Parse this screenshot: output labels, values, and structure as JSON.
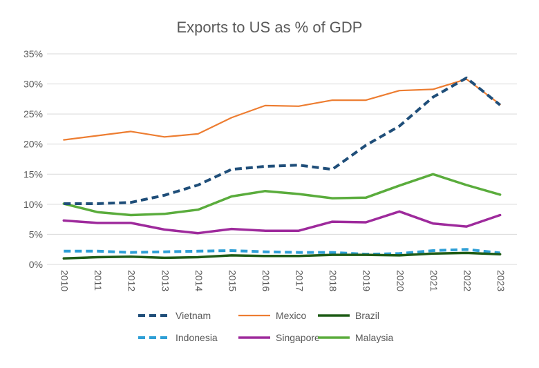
{
  "chart_data": {
    "type": "line",
    "title": "Exports to US as % of GDP",
    "xlabel": "",
    "ylabel": "",
    "x": [
      "2010",
      "2011",
      "2012",
      "2013",
      "2014",
      "2015",
      "2016",
      "2017",
      "2018",
      "2019",
      "2020",
      "2021",
      "2022",
      "2023"
    ],
    "ylim": [
      0,
      35
    ],
    "yticks": [
      0,
      5,
      10,
      15,
      20,
      25,
      30,
      35
    ],
    "ytick_labels": [
      "0%",
      "5%",
      "10%",
      "15%",
      "20%",
      "25%",
      "30%",
      "35%"
    ],
    "grid": true,
    "legend_position": "bottom",
    "series": [
      {
        "name": "Vietnam",
        "color": "#1f4e79",
        "dash": "dashed",
        "values": [
          10.1,
          10.1,
          10.3,
          11.5,
          13.2,
          15.8,
          16.3,
          16.5,
          15.8,
          19.8,
          23.0,
          27.8,
          31.0,
          26.5
        ]
      },
      {
        "name": "Mexico",
        "color": "#ed7d31",
        "dash": "solid",
        "values": [
          20.7,
          21.4,
          22.1,
          21.2,
          21.7,
          24.4,
          26.4,
          26.3,
          27.3,
          27.3,
          28.9,
          29.1,
          30.8,
          26.6
        ]
      },
      {
        "name": "Brazil",
        "color": "#1e5c16",
        "dash": "solid",
        "values": [
          1.0,
          1.2,
          1.3,
          1.1,
          1.2,
          1.5,
          1.4,
          1.4,
          1.6,
          1.6,
          1.5,
          1.8,
          1.9,
          1.7
        ]
      },
      {
        "name": "Indonesia",
        "color": "#2e9fd6",
        "dash": "dashed",
        "values": [
          2.2,
          2.2,
          2.0,
          2.1,
          2.2,
          2.3,
          2.1,
          2.0,
          2.0,
          1.7,
          1.8,
          2.3,
          2.5,
          1.9
        ]
      },
      {
        "name": "Singapore",
        "color": "#9e2a9c",
        "dash": "solid",
        "values": [
          7.3,
          6.9,
          6.9,
          5.8,
          5.2,
          5.9,
          5.6,
          5.6,
          7.1,
          7.0,
          8.8,
          6.8,
          6.3,
          8.2
        ]
      },
      {
        "name": "Malaysia",
        "color": "#5aac3c",
        "dash": "solid",
        "values": [
          10.1,
          8.7,
          8.2,
          8.4,
          9.1,
          11.3,
          12.2,
          11.7,
          11.0,
          11.1,
          13.1,
          15.0,
          13.2,
          11.6
        ]
      }
    ]
  }
}
